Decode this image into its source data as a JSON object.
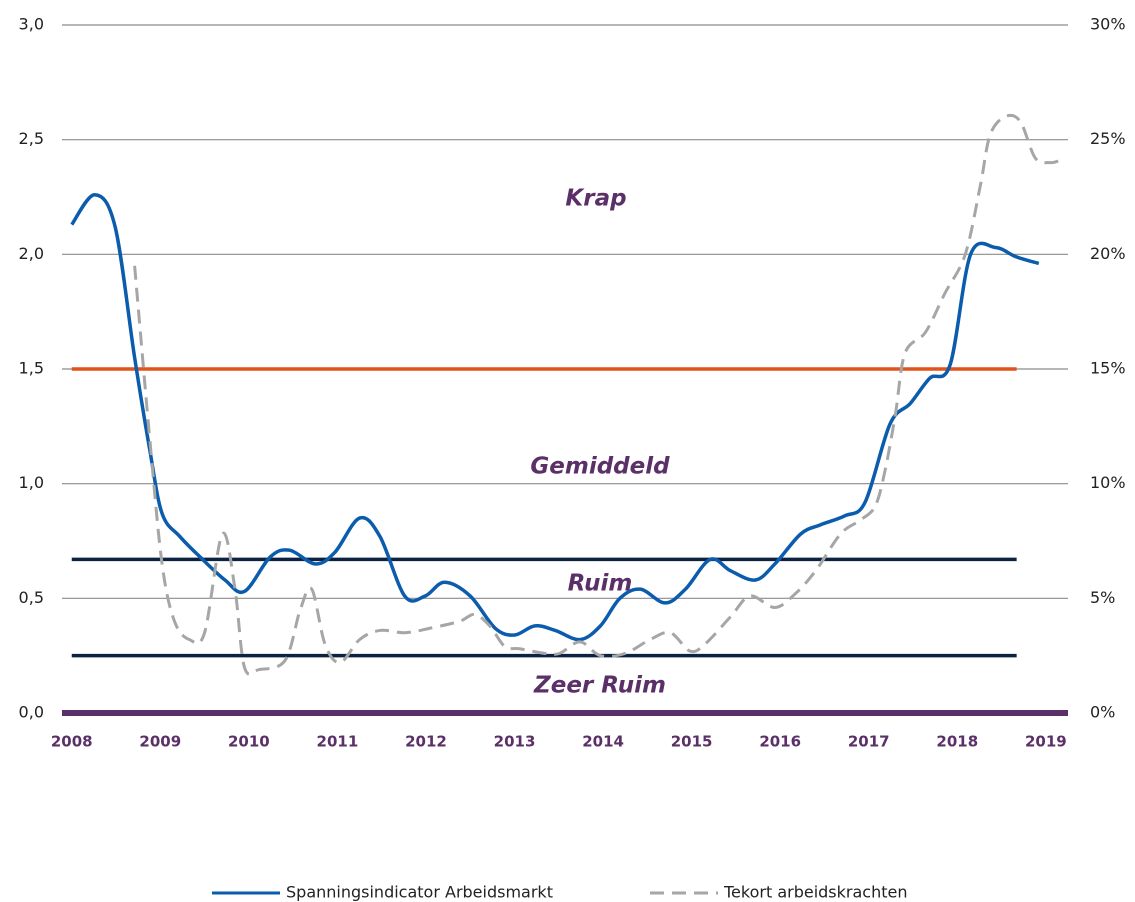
{
  "chart_data": {
    "type": "line",
    "xlim": [
      2007.89,
      2019.25
    ],
    "xticks": [
      2008,
      2009,
      2010,
      2011,
      2012,
      2013,
      2014,
      2015,
      2016,
      2017,
      2018,
      2019
    ],
    "ylim": [
      0,
      3
    ],
    "yticks": [
      {
        "value": 0,
        "label": "0,0"
      },
      {
        "value": 0.5,
        "label": "0,5"
      },
      {
        "value": 1,
        "label": "1,0"
      },
      {
        "value": 1.5,
        "label": "1,5"
      },
      {
        "value": 2,
        "label": "2,0"
      },
      {
        "value": 2.5,
        "label": "2,5"
      },
      {
        "value": 3,
        "label": "3,0"
      }
    ],
    "y2lim": [
      0,
      30
    ],
    "y2ticks": [
      {
        "value": 0,
        "label": "0%"
      },
      {
        "value": 5,
        "label": "5%"
      },
      {
        "value": 10,
        "label": "10%"
      },
      {
        "value": 15,
        "label": "15%"
      },
      {
        "value": 20,
        "label": "20%"
      },
      {
        "value": 25,
        "label": "25%"
      },
      {
        "value": 30,
        "label": "30%"
      }
    ],
    "grid": true,
    "legend": "bottom",
    "annotations": [
      "Krap",
      "Gemiddeld",
      "Ruim",
      "Zeer Ruim"
    ],
    "reference_lines": [
      {
        "value": 1.5,
        "color": "#e0541b",
        "x": [
          2008,
          2018.67
        ]
      },
      {
        "value": 0.67,
        "color": "#0d2240",
        "x": [
          2008,
          2018.67
        ]
      },
      {
        "value": 0.25,
        "color": "#0d2240",
        "x": [
          2008,
          2018.67
        ]
      },
      {
        "value": 0,
        "color": "#5b3068",
        "x": [
          2007.89,
          2019.25
        ]
      }
    ],
    "series": [
      {
        "name": "Spanningsindicator Arbeidsmarkt",
        "color": "#0b5cad",
        "dash": false,
        "x": [
          2008.0,
          2008.26,
          2008.49,
          2008.71,
          2008.88,
          2009.02,
          2009.22,
          2009.45,
          2009.73,
          2009.95,
          2010.24,
          2010.46,
          2010.75,
          2010.97,
          2011.25,
          2011.48,
          2011.76,
          2011.99,
          2012.21,
          2012.5,
          2012.78,
          2013.0,
          2013.23,
          2013.46,
          2013.74,
          2013.97,
          2014.19,
          2014.42,
          2014.7,
          2014.93,
          2015.21,
          2015.44,
          2015.72,
          2015.94,
          2016.23,
          2016.45,
          2016.73,
          2016.96,
          2017.24,
          2017.47,
          2017.69,
          2017.92,
          2018.15,
          2018.43,
          2018.66,
          2018.92
        ],
        "values": [
          2.13,
          2.26,
          2.12,
          1.55,
          1.15,
          0.87,
          0.77,
          0.68,
          0.58,
          0.53,
          0.68,
          0.71,
          0.65,
          0.7,
          0.85,
          0.77,
          0.51,
          0.51,
          0.57,
          0.51,
          0.37,
          0.34,
          0.38,
          0.36,
          0.32,
          0.38,
          0.5,
          0.54,
          0.48,
          0.54,
          0.67,
          0.62,
          0.58,
          0.65,
          0.78,
          0.82,
          0.86,
          0.92,
          1.26,
          1.35,
          1.46,
          1.52,
          2.0,
          2.03,
          1.99,
          1.96
        ]
      },
      {
        "name": "Tekort arbeidskrachten",
        "color": "#a6a6a6",
        "dash": true,
        "axis": "y2",
        "x": [
          2008.71,
          2008.88,
          2009.02,
          2009.16,
          2009.33,
          2009.5,
          2009.7,
          2009.84,
          2009.95,
          2010.12,
          2010.41,
          2010.58,
          2010.71,
          2010.86,
          2011.03,
          2011.25,
          2011.48,
          2011.76,
          2012.05,
          2012.38,
          2012.55,
          2012.72,
          2012.89,
          2013.06,
          2013.34,
          2013.51,
          2013.74,
          2013.97,
          2014.25,
          2014.53,
          2014.76,
          2014.98,
          2015.15,
          2015.44,
          2015.66,
          2015.94,
          2016.17,
          2016.4,
          2016.68,
          2016.9,
          2017.07,
          2017.18,
          2017.3,
          2017.41,
          2017.64,
          2017.86,
          2018.09,
          2018.26,
          2018.37,
          2018.54,
          2018.71,
          2018.88,
          2019.05,
          2019.16
        ],
        "values": [
          19.5,
          12,
          6.5,
          4,
          3.2,
          3.5,
          7.8,
          5.5,
          2.0,
          1.9,
          2.3,
          4.5,
          5.4,
          3.0,
          2.2,
          3.2,
          3.6,
          3.5,
          3.7,
          4.0,
          4.3,
          3.8,
          2.9,
          2.8,
          2.6,
          2.6,
          3.1,
          2.5,
          2.6,
          3.2,
          3.5,
          2.7,
          3.0,
          4.2,
          5.1,
          4.6,
          5.2,
          6.2,
          7.8,
          8.4,
          9.0,
          10.5,
          13.0,
          15.7,
          16.6,
          18.3,
          20.0,
          23.0,
          25.2,
          26.0,
          25.8,
          24.2,
          24.0,
          24.1
        ]
      }
    ]
  }
}
